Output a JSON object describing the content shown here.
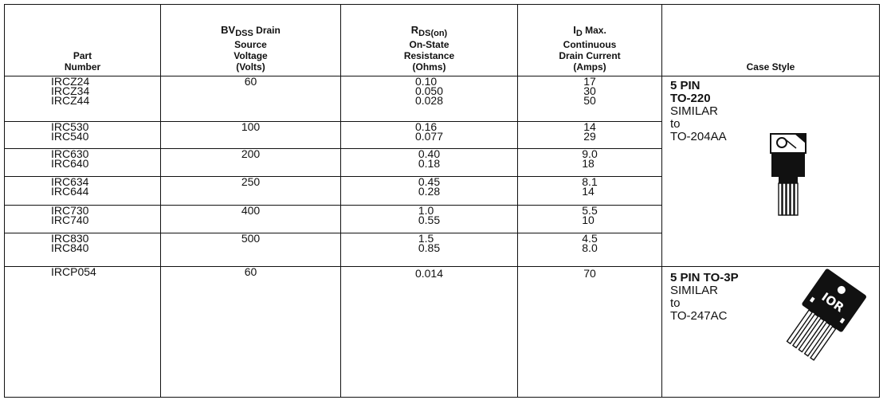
{
  "headers": {
    "part": [
      "Part",
      "Number"
    ],
    "voltage": {
      "sym": "BV",
      "sub": "DSS",
      "rest": " Drain",
      "lines": [
        "Source",
        "Voltage",
        "(Volts)"
      ]
    },
    "resistance": {
      "sym": "R",
      "sub": "DS(on)",
      "lines": [
        "On-State",
        "Resistance",
        "(Ohms)"
      ]
    },
    "current": {
      "sym": "I",
      "sub": "D",
      "rest": " Max.",
      "lines": [
        "Continuous",
        "Drain Current",
        "(Amps)"
      ]
    },
    "case": "Case Style"
  },
  "groups": [
    {
      "parts": [
        "IRCZ24",
        "IRCZ34",
        "IRCZ44"
      ],
      "voltage": "60",
      "resistance": [
        "0.10",
        "0.050",
        "0.028"
      ],
      "current": [
        "17",
        "30",
        "50"
      ]
    },
    {
      "parts": [
        "IRC530",
        "IRC540"
      ],
      "voltage": "100",
      "resistance": [
        "0.16",
        "0.077"
      ],
      "current": [
        "14",
        "29"
      ]
    },
    {
      "parts": [
        "IRC630",
        "IRC640"
      ],
      "voltage": "200",
      "resistance": [
        "0.40",
        "0.18"
      ],
      "current": [
        "9.0",
        "18"
      ]
    },
    {
      "parts": [
        "IRC634",
        "IRC644"
      ],
      "voltage": "250",
      "resistance": [
        "0.45",
        "0.28"
      ],
      "current": [
        "8.1",
        "14"
      ]
    },
    {
      "parts": [
        "IRC730",
        "IRC740"
      ],
      "voltage": "400",
      "resistance": [
        "1.0",
        "0.55"
      ],
      "current": [
        "5.5",
        "10"
      ]
    },
    {
      "parts": [
        "IRC830",
        "IRC840"
      ],
      "voltage": "500",
      "resistance": [
        "1.5",
        "0.85"
      ],
      "current": [
        "4.5",
        "8.0"
      ]
    },
    {
      "parts": [
        "IRCP054"
      ],
      "voltage": "60",
      "resistance": [
        "0.014"
      ],
      "current": [
        "70"
      ]
    }
  ],
  "case_styles": {
    "to220": {
      "line1": "5 PIN",
      "line2": "TO-220",
      "line3": "SIMILAR",
      "line4": "to",
      "line5": "TO-204AA",
      "icon": "to220-package-icon"
    },
    "to3p": {
      "line1": "5 PIN TO-3P",
      "line2": "SIMILAR",
      "line3": "to",
      "line4": "TO-247AC",
      "icon": "to3p-package-icon",
      "logo_text": "IOR"
    }
  }
}
